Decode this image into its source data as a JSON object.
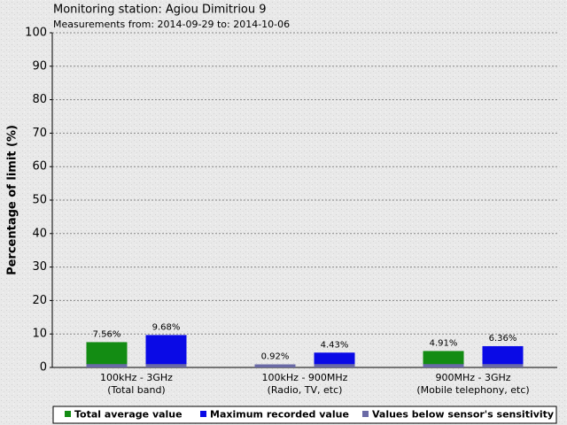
{
  "chart_data": {
    "type": "bar",
    "title": "Monitoring station: Agiou Dimitriou 9",
    "subtitle": "Measurements from: 2014-09-29 to: 2014-10-06",
    "y_label": "Percentage of limit (%)",
    "categories": [
      [
        "100kHz - 3GHz",
        "(Total band)"
      ],
      [
        "100kHz - 900MHz",
        "(Radio, TV, etc)"
      ],
      [
        "900MHz - 3GHz",
        "(Mobile telephony, etc)"
      ]
    ],
    "series": [
      {
        "name": "Total average value",
        "color": "#138c13",
        "values": [
          7.56,
          0.92,
          4.91
        ],
        "value_labels": [
          "7.56%",
          "0.92%",
          "4.91%"
        ]
      },
      {
        "name": "Maximum recorded value",
        "color": "#0a0ae6",
        "values": [
          9.68,
          4.43,
          6.36
        ],
        "value_labels": [
          "9.68%",
          "4.43%",
          "6.36%"
        ]
      }
    ],
    "sensitivity": {
      "name": "Values below sensor's sensitivity",
      "color": "#6a6aa6",
      "value": 1
    },
    "ylim": [
      0,
      100
    ],
    "yticks": [
      0,
      10,
      20,
      30,
      40,
      50,
      60,
      70,
      80,
      90,
      100
    ],
    "grid": true,
    "legend": "bottom"
  }
}
